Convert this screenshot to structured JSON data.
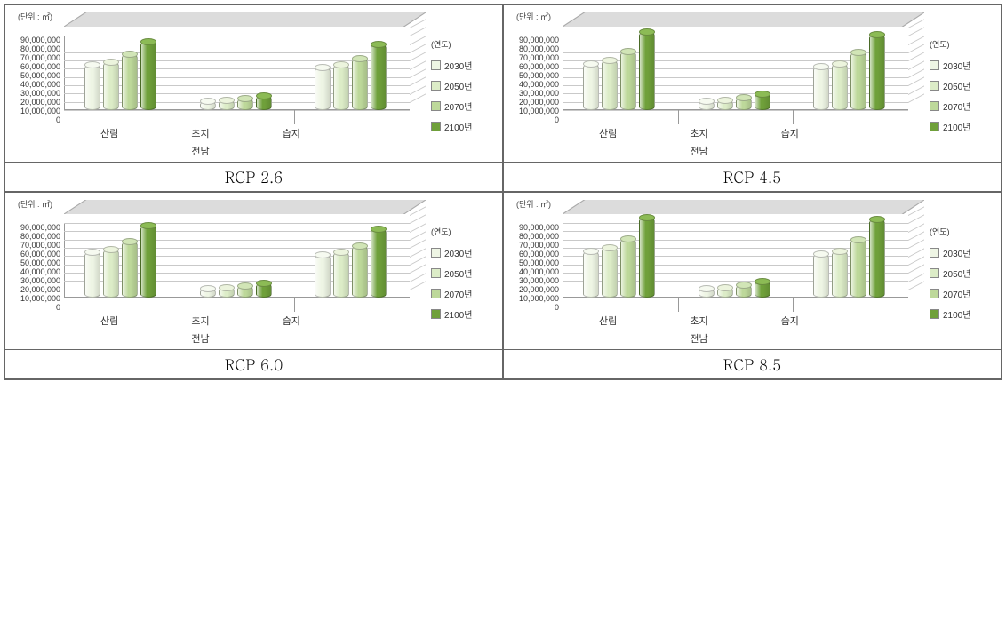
{
  "global": {
    "unit_label": "(단위 : ㎡)",
    "legend_title": "(연도)",
    "series_labels": [
      "2030년",
      "2050년",
      "2070년",
      "2100년"
    ],
    "series_colors": [
      "#eef5e4",
      "#dcecc7",
      "#bdd89a",
      "#6fa03a"
    ],
    "series_top_colors": [
      "#f6faf0",
      "#ecf4dd",
      "#d1e5b6",
      "#8cbb55"
    ],
    "categories": [
      "산림",
      "초지",
      "습지"
    ],
    "region_label": "전남",
    "y_max": 90000000,
    "y_step": 10000000,
    "y_ticks": [
      "0",
      "10,000,000",
      "20,000,000",
      "30,000,000",
      "40,000,000",
      "50,000,000",
      "60,000,000",
      "70,000,000",
      "80,000,000",
      "90,000,000"
    ],
    "grid_color": "#c9c9c9",
    "background_color": "#ffffff"
  },
  "panels": [
    {
      "title": "RCP 2.6",
      "data": {
        "산림": [
          55000000,
          58000000,
          67000000,
          83000000
        ],
        "초지": [
          11000000,
          12000000,
          14000000,
          17000000
        ],
        "습지": [
          51000000,
          55000000,
          62000000,
          79000000
        ]
      }
    },
    {
      "title": "RCP 4.5",
      "data": {
        "산림": [
          56000000,
          60000000,
          71000000,
          94000000
        ],
        "초지": [
          11000000,
          12000000,
          15000000,
          19000000
        ],
        "습지": [
          52000000,
          56000000,
          70000000,
          91000000
        ]
      }
    },
    {
      "title": "RCP 6.0",
      "data": {
        "산림": [
          55000000,
          58000000,
          67000000,
          87000000
        ],
        "초지": [
          11000000,
          12000000,
          14000000,
          17000000
        ],
        "습지": [
          51000000,
          55000000,
          62000000,
          83000000
        ]
      }
    },
    {
      "title": "RCP 8.5",
      "data": {
        "산림": [
          56000000,
          60000000,
          71000000,
          96000000
        ],
        "초지": [
          11000000,
          12000000,
          15000000,
          19000000
        ],
        "습지": [
          52000000,
          56000000,
          70000000,
          94000000
        ]
      }
    }
  ]
}
